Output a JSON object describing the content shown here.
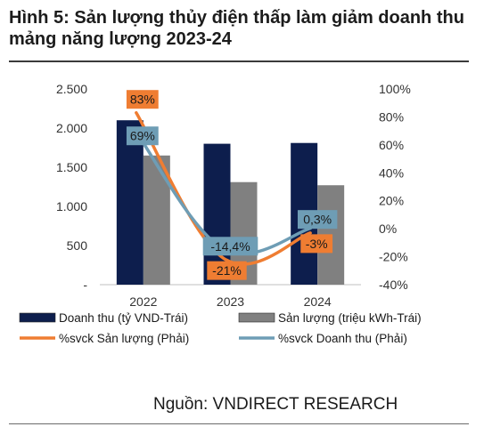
{
  "figure": {
    "title": "Hình 5: Sản lượng thủy điện thấp làm giảm doanh thu mảng năng lượng 2023-24",
    "source": "Nguồn: VNDIRECT RESEARCH"
  },
  "chart_data": {
    "type": "bar",
    "categories": [
      "2022",
      "2023",
      "2024"
    ],
    "series": [
      {
        "name": "Doanh thu (tỷ VND-Trái)",
        "kind": "bar",
        "axis": "left",
        "color": "#0d1e4d",
        "values": [
          2100,
          1800,
          1810
        ]
      },
      {
        "name": "Sản lượng (triệu kWh-Trái)",
        "kind": "bar",
        "axis": "left",
        "color": "#808080",
        "values": [
          1650,
          1310,
          1270
        ]
      },
      {
        "name": "%svck Sản lượng (Phải)",
        "kind": "line",
        "axis": "right",
        "color": "#ef7d32",
        "values": [
          83,
          -21,
          -3
        ],
        "labels": [
          "83%",
          "-21%",
          "-3%"
        ]
      },
      {
        "name": "%svck Doanh thu (Phải)",
        "kind": "line",
        "axis": "right",
        "color": "#6e9db5",
        "values": [
          69,
          -14.4,
          0.3
        ],
        "labels": [
          "69%",
          "-14,4%",
          "0,3%"
        ]
      }
    ],
    "left_axis": {
      "ylim": [
        0,
        2500
      ],
      "ticks": [
        0,
        500,
        1000,
        1500,
        2000,
        2500
      ],
      "tick_labels": [
        "-",
        "500",
        "1.000",
        "1.500",
        "2.000",
        "2.500"
      ]
    },
    "right_axis": {
      "ylim": [
        -40,
        100
      ],
      "ticks": [
        -40,
        -20,
        0,
        20,
        40,
        60,
        80,
        100
      ],
      "tick_labels": [
        "-40%",
        "-20%",
        "0%",
        "20%",
        "40%",
        "60%",
        "80%",
        "100%"
      ]
    },
    "grid": false,
    "legend_position": "bottom"
  }
}
